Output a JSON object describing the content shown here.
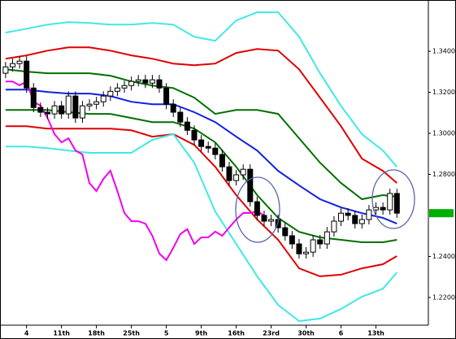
{
  "chart_data": {
    "type": "candlestick",
    "xlim": [
      -0.8,
      60.5
    ],
    "ylim": [
      1.2065,
      1.365
    ],
    "yticks": [
      {
        "value": 1.22,
        "label": "1.22000"
      },
      {
        "value": 1.24,
        "label": "1.24000"
      },
      {
        "value": 1.28,
        "label": "1.28000"
      },
      {
        "value": 1.3,
        "label": "1.30000"
      },
      {
        "value": 1.32,
        "label": "1.32000"
      },
      {
        "value": 1.34,
        "label": "1.34000"
      }
    ],
    "xticks": [
      {
        "value": 3,
        "label": "4"
      },
      {
        "value": 8,
        "label": "11th"
      },
      {
        "value": 13,
        "label": "18th"
      },
      {
        "value": 18,
        "label": "25th"
      },
      {
        "value": 23,
        "label": "5"
      },
      {
        "value": 28,
        "label": "9th"
      },
      {
        "value": 33,
        "label": "16th"
      },
      {
        "value": 38,
        "label": "23rd"
      },
      {
        "value": 43,
        "label": "30th"
      },
      {
        "value": 48,
        "label": "6"
      },
      {
        "value": 53,
        "label": "13th"
      }
    ],
    "x": [
      0,
      1,
      2,
      3,
      4,
      5,
      6,
      7,
      8,
      9,
      10,
      11,
      12,
      13,
      14,
      15,
      16,
      17,
      18,
      19,
      20,
      21,
      22,
      23,
      24,
      25,
      26,
      27,
      28,
      29,
      30,
      31,
      32,
      33,
      34,
      35,
      36,
      37,
      38,
      39,
      40,
      41,
      42,
      43,
      44,
      45,
      46,
      47,
      48,
      49,
      50,
      51,
      52,
      53,
      54,
      55,
      56
    ],
    "open": [
      1.3293,
      1.3324,
      1.334,
      1.3352,
      1.3221,
      1.3126,
      1.3103,
      1.3095,
      1.3134,
      1.3095,
      1.3182,
      1.3075,
      1.3134,
      1.3142,
      1.3154,
      1.3182,
      1.3205,
      1.3221,
      1.3233,
      1.3253,
      1.3261,
      1.3245,
      1.3261,
      1.3221,
      1.3142,
      1.3103,
      1.3055,
      1.3015,
      1.2968,
      1.2936,
      1.2928,
      1.2897,
      1.2837,
      1.277,
      1.2798,
      1.2825,
      1.2667,
      1.26,
      1.2572,
      1.258,
      1.254,
      1.2501,
      1.2461,
      1.2413,
      1.2421,
      1.2481,
      1.2461,
      1.252,
      1.2572,
      1.2611,
      1.26,
      1.256,
      1.258,
      1.2627,
      1.2639,
      1.2627,
      1.2707
    ],
    "high": [
      1.3348,
      1.3364,
      1.3376,
      1.3376,
      1.3245,
      1.315,
      1.3126,
      1.3158,
      1.3158,
      1.3205,
      1.3205,
      1.3158,
      1.3166,
      1.3178,
      1.3205,
      1.3229,
      1.3245,
      1.3257,
      1.3277,
      1.3285,
      1.3285,
      1.3285,
      1.3285,
      1.3245,
      1.3166,
      1.3126,
      1.3079,
      1.3039,
      1.2992,
      1.296,
      1.2952,
      1.292,
      1.2861,
      1.2821,
      1.2849,
      1.2849,
      1.2691,
      1.2623,
      1.2604,
      1.2604,
      1.2564,
      1.2524,
      1.2485,
      1.2445,
      1.2505,
      1.2505,
      1.2544,
      1.2596,
      1.2635,
      1.2635,
      1.2623,
      1.2604,
      1.2651,
      1.2663,
      1.2663,
      1.273,
      1.273
    ],
    "low": [
      1.3269,
      1.3301,
      1.3316,
      1.3198,
      1.3103,
      1.3079,
      1.3071,
      1.3071,
      1.3071,
      1.3071,
      1.3051,
      1.3051,
      1.311,
      1.3118,
      1.313,
      1.3158,
      1.3182,
      1.3198,
      1.3209,
      1.3229,
      1.3221,
      1.3221,
      1.3198,
      1.3118,
      1.3079,
      1.3031,
      1.2992,
      1.2944,
      1.2912,
      1.2905,
      1.2873,
      1.2813,
      1.2746,
      1.2746,
      1.2774,
      1.2643,
      1.2576,
      1.2548,
      1.2548,
      1.2516,
      1.2477,
      1.2437,
      1.239,
      1.239,
      1.2398,
      1.2437,
      1.2437,
      1.2497,
      1.2548,
      1.2576,
      1.2536,
      1.2536,
      1.2556,
      1.2604,
      1.2604,
      1.2604,
      1.2588
    ],
    "close": [
      1.3324,
      1.334,
      1.3352,
      1.3221,
      1.3126,
      1.3103,
      1.3095,
      1.3134,
      1.3095,
      1.3182,
      1.3075,
      1.3134,
      1.3142,
      1.3154,
      1.3182,
      1.3205,
      1.3221,
      1.3233,
      1.3253,
      1.3261,
      1.3245,
      1.3261,
      1.3221,
      1.3142,
      1.3103,
      1.3055,
      1.3015,
      1.2968,
      1.2936,
      1.2928,
      1.2897,
      1.2837,
      1.277,
      1.2798,
      1.2825,
      1.2667,
      1.26,
      1.2572,
      1.258,
      1.254,
      1.2501,
      1.2461,
      1.2413,
      1.2421,
      1.2481,
      1.2461,
      1.252,
      1.2572,
      1.2611,
      1.26,
      1.256,
      1.258,
      1.2627,
      1.2639,
      1.2627,
      1.2707,
      1.2611
    ],
    "price_marker_color": "#00b000",
    "series": [
      {
        "color": "#40e8e8",
        "x": [
          0,
          3,
          6,
          9,
          12,
          15,
          18,
          21,
          24,
          27,
          30,
          33,
          36,
          39,
          42,
          45,
          48,
          51,
          54,
          56
        ],
        "values": [
          1.3491,
          1.351,
          1.353,
          1.3542,
          1.3538,
          1.353,
          1.353,
          1.3538,
          1.353,
          1.3471,
          1.3451,
          1.355,
          1.359,
          1.359,
          1.3471,
          1.3293,
          1.3134,
          1.2996,
          1.2916,
          1.2837
        ]
      },
      {
        "color": "#e00000",
        "x": [
          0,
          3,
          6,
          9,
          12,
          15,
          18,
          21,
          24,
          27,
          30,
          33,
          36,
          39,
          42,
          45,
          48,
          51,
          54,
          56
        ],
        "values": [
          1.3364,
          1.338,
          1.3403,
          1.3419,
          1.3419,
          1.3403,
          1.338,
          1.3364,
          1.334,
          1.3332,
          1.334,
          1.3392,
          1.3411,
          1.3403,
          1.3312,
          1.3174,
          1.3035,
          1.2877,
          1.2817,
          1.2758
        ]
      },
      {
        "color": "#007000",
        "x": [
          0,
          3,
          6,
          9,
          12,
          15,
          18,
          21,
          24,
          27,
          30,
          33,
          36,
          39,
          42,
          45,
          48,
          51,
          54,
          56
        ],
        "values": [
          1.3312,
          1.3301,
          1.3293,
          1.3293,
          1.3293,
          1.3281,
          1.3253,
          1.3233,
          1.3221,
          1.3174,
          1.3095,
          1.3114,
          1.3114,
          1.3095,
          1.2976,
          1.2857,
          1.2758,
          1.2679,
          1.2699,
          1.2691
        ]
      },
      {
        "color": "#1020e0",
        "x": [
          0,
          3,
          6,
          9,
          12,
          15,
          18,
          21,
          24,
          27,
          30,
          33,
          36,
          39,
          42,
          45,
          48,
          51,
          54,
          56
        ],
        "values": [
          1.3213,
          1.3213,
          1.3202,
          1.3194,
          1.3194,
          1.3182,
          1.3154,
          1.3142,
          1.3142,
          1.3103,
          1.3055,
          1.2984,
          1.2916,
          1.2817,
          1.2746,
          1.2679,
          1.2639,
          1.2611,
          1.2588,
          1.256
        ]
      },
      {
        "color": "#007000",
        "x": [
          0,
          3,
          6,
          9,
          12,
          15,
          18,
          21,
          24,
          27,
          30,
          33,
          36,
          39,
          42,
          45,
          48,
          51,
          54,
          56
        ],
        "values": [
          1.3114,
          1.3114,
          1.3114,
          1.3103,
          1.3095,
          1.3095,
          1.3075,
          1.3055,
          1.3055,
          1.3023,
          1.2956,
          1.2837,
          1.2699,
          1.2588,
          1.252,
          1.2493,
          1.2481,
          1.2469,
          1.2469,
          1.2481
        ]
      },
      {
        "color": "#e00000",
        "x": [
          0,
          3,
          6,
          9,
          12,
          15,
          18,
          21,
          24,
          27,
          30,
          33,
          36,
          39,
          42,
          45,
          48,
          51,
          54,
          56
        ],
        "values": [
          1.3035,
          1.3035,
          1.3023,
          1.3023,
          1.3023,
          1.3023,
          1.3015,
          1.2984,
          1.2996,
          1.2944,
          1.2837,
          1.2699,
          1.258,
          1.2481,
          1.2342,
          1.2303,
          1.2311,
          1.2342,
          1.2362,
          1.2402
        ]
      },
      {
        "color": "#40e8e8",
        "x": [
          0,
          3,
          6,
          9,
          12,
          15,
          18,
          21,
          24,
          27,
          30,
          33,
          36,
          39,
          42,
          45,
          48,
          51,
          54,
          56
        ],
        "values": [
          1.2936,
          1.2936,
          1.2928,
          1.2916,
          1.2905,
          1.2905,
          1.2905,
          1.2968,
          1.2996,
          1.2857,
          1.2619,
          1.2461,
          1.2303,
          1.2164,
          1.2085,
          1.2097,
          1.2144,
          1.2204,
          1.2243,
          1.2322
        ]
      },
      {
        "color": "#f000f0",
        "x": [
          0,
          1,
          2,
          3,
          4,
          5,
          6,
          7,
          8,
          9,
          10,
          11,
          12,
          13,
          14,
          15,
          16,
          17,
          18,
          19,
          20,
          21,
          22,
          23,
          24,
          25,
          26,
          27,
          28,
          29,
          30,
          31,
          32,
          33,
          34,
          35,
          36,
          37
        ],
        "values": [
          1.3253,
          1.3253,
          1.3234,
          1.3253,
          1.3154,
          1.3135,
          1.3075,
          1.2996,
          1.2956,
          1.2976,
          1.2917,
          1.2897,
          1.2758,
          1.2719,
          1.2778,
          1.2818,
          1.2719,
          1.2612,
          1.2572,
          1.2572,
          1.256,
          1.2501,
          1.2414,
          1.2382,
          1.2442,
          1.2509,
          1.2533,
          1.2461,
          1.2493,
          1.2493,
          1.2521,
          1.2501,
          1.2541,
          1.258,
          1.2612,
          1.2612,
          1.262,
          1.26
        ]
      }
    ]
  }
}
